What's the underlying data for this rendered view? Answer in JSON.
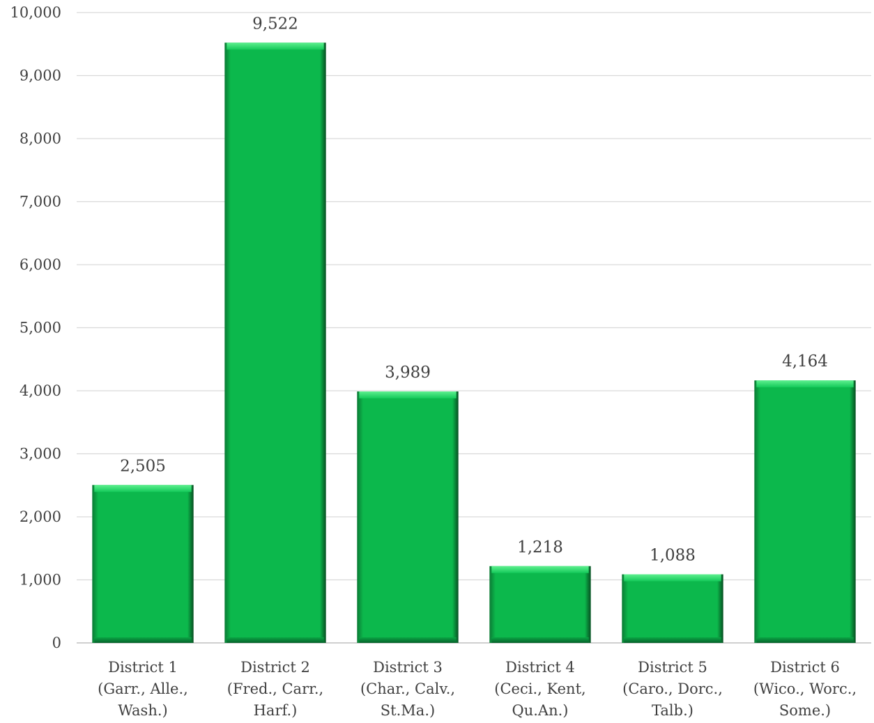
{
  "chart_data": {
    "type": "bar",
    "categories": [
      [
        "District 1",
        "(Garr., Alle.,",
        "Wash.)"
      ],
      [
        "District 2",
        "(Fred., Carr.,",
        "Harf.)"
      ],
      [
        "District 3",
        "(Char., Calv.,",
        "St.Ma.)"
      ],
      [
        "District 4",
        "(Ceci., Kent,",
        "Qu.An.)"
      ],
      [
        "District 5",
        "(Caro., Dorc.,",
        "Talb.)"
      ],
      [
        "District 6",
        "(Wico., Worc.,",
        "Some.)"
      ]
    ],
    "values": [
      2505,
      9522,
      3989,
      1218,
      1088,
      4164
    ],
    "data_labels": [
      "2,505",
      "9,522",
      "3,989",
      "1,218",
      "1,088",
      "4,164"
    ],
    "title": "",
    "xlabel": "",
    "ylabel": "",
    "ylim": [
      0,
      10000
    ],
    "yticks": [
      0,
      1000,
      2000,
      3000,
      4000,
      5000,
      6000,
      7000,
      8000,
      9000,
      10000
    ],
    "ytick_labels": [
      "0",
      "1,000",
      "2,000",
      "3,000",
      "4,000",
      "5,000",
      "6,000",
      "7,000",
      "8,000",
      "9,000",
      "10,000"
    ],
    "grid": true,
    "legend": "none",
    "bar_color": "#0bbf50"
  }
}
